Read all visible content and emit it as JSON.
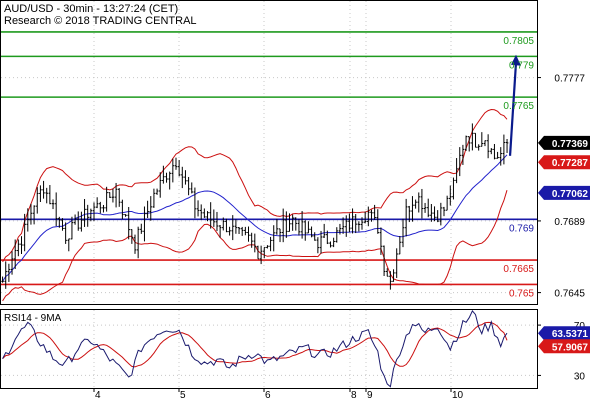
{
  "header": {
    "line1": "AUD/USD - 30min - 13:27:24 (CET)",
    "line2": "Research © 2018 TRADING CENTRAL"
  },
  "colors": {
    "resistance": "#1e9a1e",
    "pivot": "#1a1aa8",
    "support": "#d81818",
    "bollinger": "#cc1010",
    "ma": "#2222cc",
    "price_line": "#000000",
    "arrow": "#0a1a8c",
    "rsi_line": "#1a1a6e",
    "rsi_ma": "#cc1010"
  },
  "chart_data": [
    {
      "type": "line",
      "series_kind": "candlestick",
      "y_axis": {
        "ticks": [
          0.7777,
          0.7689,
          0.7645
        ],
        "range": [
          0.7638,
          0.7824
        ]
      },
      "x_axis": {
        "ticks": [
          "4",
          "5",
          "6",
          "8",
          "9",
          "10"
        ]
      },
      "levels": [
        {
          "label": "0.7805",
          "value": 0.7805,
          "kind": "resistance"
        },
        {
          "label": "0.779",
          "value": 0.779,
          "kind": "resistance"
        },
        {
          "label": "0.7765",
          "value": 0.7765,
          "kind": "resistance"
        },
        {
          "label": "0.769",
          "value": 0.769,
          "kind": "pivot"
        },
        {
          "label": "0.7665",
          "value": 0.7665,
          "kind": "support"
        },
        {
          "label": "0.765",
          "value": 0.765,
          "kind": "support"
        }
      ],
      "tags": [
        {
          "label": "0.77369",
          "value": 0.77369,
          "style": "black"
        },
        {
          "label": "0.77287",
          "value": 0.77287,
          "style": "red"
        },
        {
          "label": "0.77062",
          "value": 0.77062,
          "style": "blue"
        }
      ],
      "forecast_arrow": {
        "from": 0.7729,
        "to": 0.7791
      },
      "price_anchors": [
        [
          0,
          0.7652
        ],
        [
          3,
          0.7668
        ],
        [
          6,
          0.7678
        ],
        [
          10,
          0.77
        ],
        [
          13,
          0.771
        ],
        [
          16,
          0.7698
        ],
        [
          20,
          0.768
        ],
        [
          24,
          0.7688
        ],
        [
          28,
          0.7696
        ],
        [
          32,
          0.77
        ],
        [
          36,
          0.7708
        ],
        [
          39,
          0.769
        ],
        [
          42,
          0.7675
        ],
        [
          45,
          0.769
        ],
        [
          48,
          0.7705
        ],
        [
          52,
          0.7718
        ],
        [
          55,
          0.7726
        ],
        [
          58,
          0.7712
        ],
        [
          61,
          0.7698
        ],
        [
          64,
          0.7692
        ],
        [
          68,
          0.7688
        ],
        [
          72,
          0.7685
        ],
        [
          75,
          0.768
        ],
        [
          78,
          0.7678
        ],
        [
          81,
          0.767
        ],
        [
          84,
          0.7676
        ],
        [
          88,
          0.7684
        ],
        [
          92,
          0.769
        ],
        [
          96,
          0.7682
        ],
        [
          100,
          0.7676
        ],
        [
          104,
          0.7678
        ],
        [
          108,
          0.7684
        ],
        [
          112,
          0.769
        ],
        [
          116,
          0.7694
        ],
        [
          119,
          0.7685
        ],
        [
          121,
          0.7662
        ],
        [
          123,
          0.7652
        ],
        [
          125,
          0.767
        ],
        [
          128,
          0.7695
        ],
        [
          131,
          0.7705
        ],
        [
          134,
          0.7698
        ],
        [
          137,
          0.7692
        ],
        [
          140,
          0.7696
        ],
        [
          143,
          0.771
        ],
        [
          145,
          0.7728
        ],
        [
          147,
          0.7742
        ],
        [
          150,
          0.7738
        ],
        [
          153,
          0.774
        ],
        [
          156,
          0.7728
        ],
        [
          158,
          0.773
        ],
        [
          160,
          0.7737
        ]
      ]
    },
    {
      "type": "line",
      "title": "RSI14 - 9MA",
      "y_axis": {
        "ticks": [
          70,
          30
        ],
        "range": [
          20,
          82
        ]
      },
      "tags": [
        {
          "label": "63.5371",
          "value": 63.5371,
          "style": "blue"
        },
        {
          "label": "57.9067",
          "value": 57.9067,
          "style": "red"
        }
      ],
      "rsi_anchors": [
        [
          0,
          42
        ],
        [
          4,
          60
        ],
        [
          8,
          70
        ],
        [
          12,
          56
        ],
        [
          16,
          44
        ],
        [
          20,
          38
        ],
        [
          24,
          52
        ],
        [
          28,
          58
        ],
        [
          32,
          48
        ],
        [
          36,
          38
        ],
        [
          40,
          28
        ],
        [
          44,
          52
        ],
        [
          48,
          62
        ],
        [
          52,
          68
        ],
        [
          56,
          66
        ],
        [
          60,
          48
        ],
        [
          64,
          40
        ],
        [
          68,
          42
        ],
        [
          72,
          36
        ],
        [
          76,
          44
        ],
        [
          80,
          48
        ],
        [
          84,
          40
        ],
        [
          88,
          44
        ],
        [
          92,
          48
        ],
        [
          96,
          52
        ],
        [
          100,
          46
        ],
        [
          104,
          48
        ],
        [
          108,
          54
        ],
        [
          112,
          60
        ],
        [
          116,
          64
        ],
        [
          119,
          48
        ],
        [
          121,
          28
        ],
        [
          123,
          24
        ],
        [
          126,
          50
        ],
        [
          130,
          72
        ],
        [
          134,
          64
        ],
        [
          138,
          70
        ],
        [
          142,
          52
        ],
        [
          146,
          70
        ],
        [
          149,
          80
        ],
        [
          152,
          66
        ],
        [
          155,
          70
        ],
        [
          158,
          56
        ],
        [
          160,
          63
        ]
      ]
    }
  ]
}
